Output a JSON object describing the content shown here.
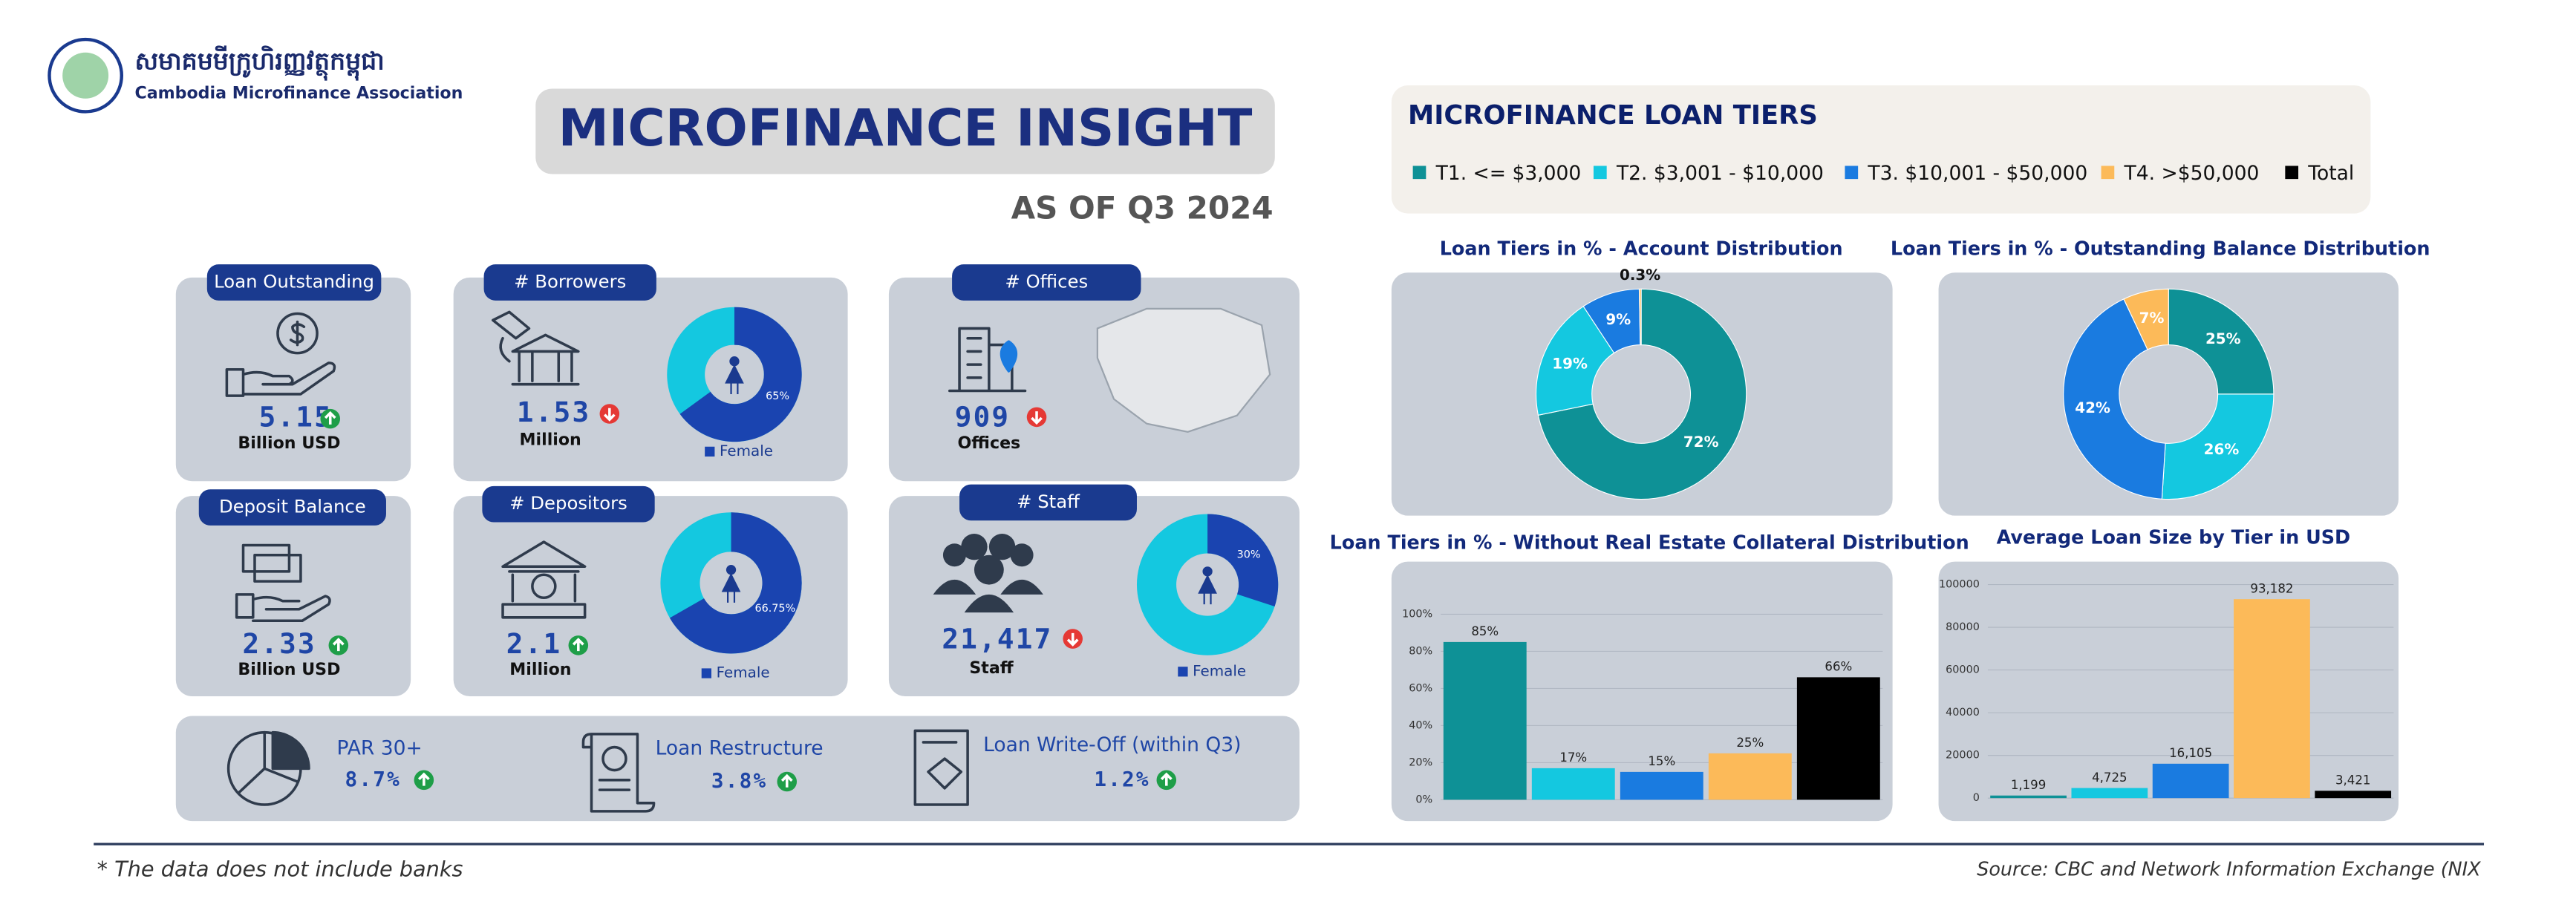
{
  "header": {
    "org_khmer": "សមាគមមីក្រូហិរញ្ញវត្ថុកម្ពុជា",
    "org": "Cambodia Microfinance Association",
    "title": "MICROFINANCE INSIGHT",
    "subtitle": "AS OF Q3 2024"
  },
  "kpis": [
    {
      "label": "Loan Outstanding",
      "value": "5.15",
      "unit": "Billion USD",
      "trend": "up"
    },
    {
      "label": "# Borrowers",
      "value": "1.53",
      "unit": "Million",
      "trend": "down",
      "chart": {
        "type": "pie",
        "values": [
          65
        ],
        "value_labels": [
          "65%"
        ],
        "legend": "Female"
      }
    },
    {
      "label": "# Offices",
      "value": "909",
      "unit": "Offices",
      "trend": "down"
    },
    {
      "label": "Deposit Balance",
      "value": "2.33",
      "unit": "Billion USD",
      "trend": "up"
    },
    {
      "label": "# Depositors",
      "value": "2.1",
      "unit": "Million",
      "trend": "up",
      "chart": {
        "type": "pie",
        "values": [
          66.75
        ],
        "value_labels": [
          "66.75%"
        ],
        "legend": "Female"
      }
    },
    {
      "label": "# Staff",
      "value": "21,417",
      "unit": "Staff",
      "trend": "down",
      "chart": {
        "type": "pie",
        "values": [
          30
        ],
        "value_labels": [
          "30%"
        ],
        "legend": "Female"
      }
    },
    {
      "label": "PAR 30+",
      "value": "8.7%",
      "trend": "up"
    },
    {
      "label": "Loan Restructure",
      "value": "3.8%",
      "trend": "up"
    },
    {
      "label": "Loan Write-Off  (within Q3)",
      "value": "1.2%",
      "trend": "up"
    }
  ],
  "legend": {
    "title": "MICROFINANCE LOAN TIERS",
    "items": [
      {
        "name": "T1. <= $3,000",
        "color": "#0e9196"
      },
      {
        "name": "T2. $3,001 - $10,000",
        "color": "#14c8e0"
      },
      {
        "name": "T3. $10,001 - $50,000",
        "color": "#1a7be0"
      },
      {
        "name": "T4. >$50,000",
        "color": "#fcba59"
      },
      {
        "name": "Total",
        "color": "#000000"
      }
    ]
  },
  "chart_data": [
    {
      "type": "pie",
      "title": "Loan Tiers in % - Account Distribution",
      "values": [
        72,
        19,
        9,
        0.3
      ],
      "value_labels": [
        "72%",
        "19%",
        "9%",
        "0.3%"
      ],
      "colors": [
        "#0e9196",
        "#14c8e0",
        "#1a7be0",
        "#fcba59"
      ]
    },
    {
      "type": "pie",
      "title": "Loan Tiers in % - Outstanding Balance Distribution",
      "values": [
        25,
        26,
        42,
        7
      ],
      "value_labels": [
        "25%",
        "26%",
        "42%",
        "7%"
      ],
      "colors": [
        "#0e9196",
        "#14c8e0",
        "#1a7be0",
        "#fcba59"
      ]
    },
    {
      "type": "bar",
      "title": "Loan Tiers in % - Without Real Estate Collateral Distribution",
      "categories": [
        null,
        null,
        null,
        null,
        null
      ],
      "values": [
        85,
        17,
        15,
        25,
        66
      ],
      "value_labels": [
        "85%",
        "17%",
        "15%",
        "25%",
        "66%"
      ],
      "colors": [
        "#0e9196",
        "#14c8e0",
        "#1a7be0",
        "#fcba59",
        "#000000"
      ],
      "ylim": [
        0,
        100
      ],
      "yticks": [
        {
          "value": 0,
          "label": "0%"
        },
        {
          "value": 20,
          "label": "20%"
        },
        {
          "value": 40,
          "label": "40%"
        },
        {
          "value": 60,
          "label": "60%"
        },
        {
          "value": 80,
          "label": "80%"
        },
        {
          "value": 100,
          "label": "100%"
        }
      ],
      "grid": true
    },
    {
      "type": "bar",
      "title": "Average Loan Size by Tier in USD",
      "categories": [
        null,
        null,
        null,
        null,
        null
      ],
      "values": [
        1199,
        4725,
        16105,
        93182,
        3421
      ],
      "value_labels": [
        "1,199",
        "4,725",
        "16,105",
        "93,182",
        "3,421"
      ],
      "colors": [
        "#0e9196",
        "#14c8e0",
        "#1a7be0",
        "#fcba59",
        "#000000"
      ],
      "ylim": [
        0,
        100000
      ],
      "yticks": [
        0,
        20000,
        40000,
        60000,
        80000,
        100000
      ],
      "grid": true
    }
  ],
  "footer": {
    "note": "* The data does not include banks",
    "source": "Source: CBC and Network Information Exchange (NIX"
  }
}
